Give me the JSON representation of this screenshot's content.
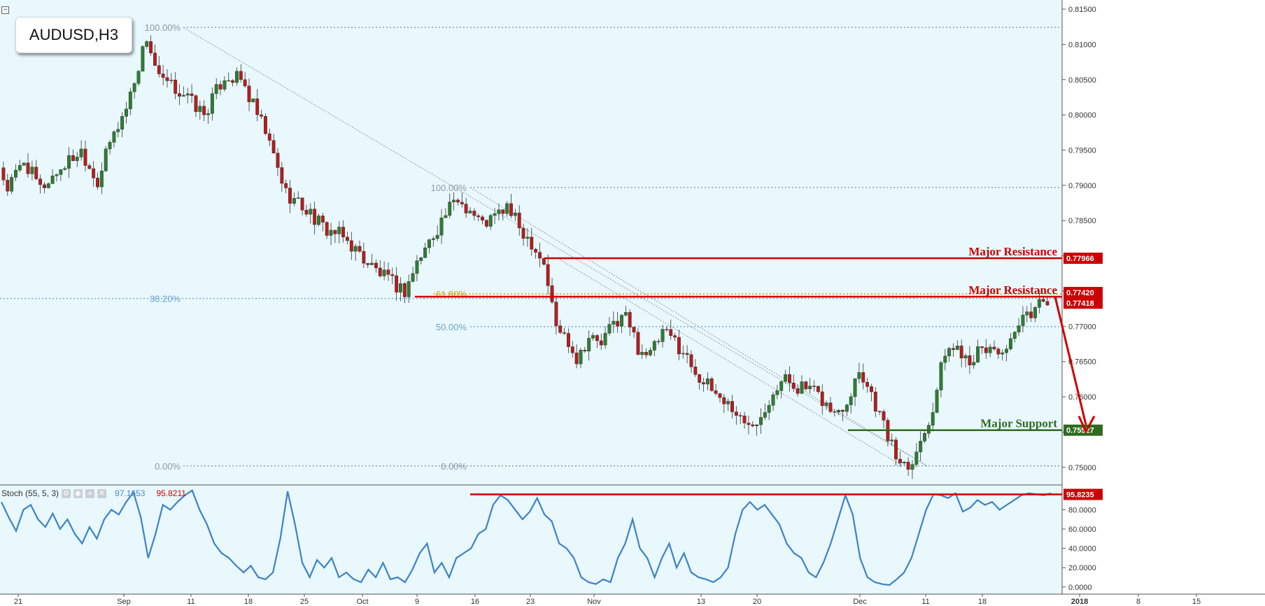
{
  "symbol": "AUDUSD,H3",
  "colors": {
    "bg": "#e9f8fd",
    "up": "#2e7d32",
    "down": "#b71c1c",
    "resistance": "#cc0000",
    "support": "#2e6b1f",
    "fib": "#8aa0b0",
    "fib_blue": "#5b9bd5",
    "stoch": "#3c82c8"
  },
  "indicator": {
    "name": "Stoch (55, 5, 3)",
    "value1": "97.1653",
    "value2": "95.8211"
  },
  "chart_data": [
    {
      "type": "candlestick",
      "title": "AUDUSD,H3",
      "ylim": [
        0.7476,
        0.8155
      ],
      "x_ticks": [
        "21",
        "Sep",
        "11",
        "18",
        "25",
        "Oct",
        "9",
        "16",
        "23",
        "Nov",
        "13",
        "20",
        "Dec",
        "11",
        "18",
        "2018",
        "8",
        "15"
      ],
      "y_ticks": [
        "0.81500",
        "0.81000",
        "0.80500",
        "0.80000",
        "0.79500",
        "0.79000",
        "0.78500",
        "0.78000",
        "0.77500",
        "0.77000",
        "0.76500",
        "0.76000",
        "0.75500",
        "0.75000"
      ],
      "series_path": [
        [
          0,
          0.7925
        ],
        [
          2,
          0.7895
        ],
        [
          6,
          0.7935
        ],
        [
          10,
          0.7895
        ],
        [
          16,
          0.793
        ],
        [
          20,
          0.795
        ],
        [
          24,
          0.7905
        ],
        [
          27,
          0.796
        ],
        [
          31,
          0.801
        ],
        [
          36,
          0.811
        ],
        [
          39,
          0.805
        ],
        [
          45,
          0.803
        ],
        [
          50,
          0.8
        ],
        [
          55,
          0.8055
        ],
        [
          59,
          0.805
        ],
        [
          65,
          0.7975
        ],
        [
          70,
          0.789
        ],
        [
          76,
          0.786
        ],
        [
          79,
          0.784
        ],
        [
          83,
          0.783
        ],
        [
          86,
          0.7815
        ],
        [
          90,
          0.779
        ],
        [
          95,
          0.7765
        ],
        [
          99,
          0.775
        ],
        [
          102,
          0.779
        ],
        [
          105,
          0.782
        ],
        [
          109,
          0.786
        ],
        [
          112,
          0.788
        ],
        [
          115,
          0.7865
        ],
        [
          118,
          0.7845
        ],
        [
          121,
          0.7855
        ],
        [
          124,
          0.787
        ],
        [
          127,
          0.784
        ],
        [
          130,
          0.782
        ],
        [
          133,
          0.779
        ],
        [
          136,
          0.77
        ],
        [
          139,
          0.768
        ],
        [
          141,
          0.7655
        ],
        [
          144,
          0.7685
        ],
        [
          147,
          0.7675
        ],
        [
          150,
          0.7705
        ],
        [
          153,
          0.7715
        ],
        [
          156,
          0.767
        ],
        [
          159,
          0.766
        ],
        [
          162,
          0.769
        ],
        [
          165,
          0.768
        ],
        [
          168,
          0.7655
        ],
        [
          172,
          0.762
        ],
        [
          176,
          0.76
        ],
        [
          179,
          0.7585
        ],
        [
          182,
          0.756
        ],
        [
          186,
          0.7575
        ],
        [
          189,
          0.761
        ],
        [
          192,
          0.7625
        ],
        [
          195,
          0.7615
        ],
        [
          198,
          0.761
        ],
        [
          201,
          0.7595
        ],
        [
          204,
          0.7575
        ],
        [
          207,
          0.7595
        ],
        [
          210,
          0.764
        ],
        [
          213,
          0.7605
        ],
        [
          216,
          0.756
        ],
        [
          219,
          0.7515
        ],
        [
          222,
          0.7505
        ],
        [
          225,
          0.7535
        ],
        [
          228,
          0.7585
        ],
        [
          231,
          0.7665
        ],
        [
          234,
          0.767
        ],
        [
          237,
          0.7655
        ],
        [
          240,
          0.7665
        ],
        [
          243,
          0.767
        ],
        [
          246,
          0.766
        ],
        [
          249,
          0.77
        ],
        [
          252,
          0.772
        ],
        [
          255,
          0.774
        ]
      ],
      "up_color": "#2e7d32",
      "down_color": "#b71c1c",
      "fib_levels": [
        {
          "label": "100.00%",
          "price": 0.8124
        },
        {
          "label": "38.20%",
          "price": 0.77395
        },
        {
          "label": "0.00%",
          "price": 0.7502
        },
        {
          "label": "100.00%",
          "price": 0.7897
        },
        {
          "label": "61.80%",
          "price": 0.7746
        },
        {
          "label": "50.00%",
          "price": 0.76995
        },
        {
          "label": "0.00%",
          "price": 0.7502
        }
      ],
      "horizontal_levels": [
        {
          "name": "Major Resistance",
          "value": "0.77966",
          "price": 0.77966,
          "color": "#cc0000"
        },
        {
          "name": "Major Resistance",
          "value": "0.77420",
          "price": 0.7742,
          "color": "#cc0000"
        },
        {
          "name": "",
          "value": "0.77418",
          "price": 0.77418,
          "color": "#cc0000"
        },
        {
          "name": "Major Support",
          "value": "0.75527",
          "price": 0.75527,
          "color": "#2e6b1f"
        }
      ],
      "projection": {
        "from_price": 0.7742,
        "to_price": 0.75527
      }
    },
    {
      "type": "line",
      "title": "Stoch (55, 5, 3)",
      "ylim": [
        -3,
        102
      ],
      "y_ticks": [
        "0.0000",
        "20.0000",
        "40.0000",
        "60.0000",
        "80.0000"
      ],
      "series": [
        {
          "name": "Stoch (55, 5, 3)",
          "values": [
            88,
            72,
            58,
            80,
            85,
            70,
            62,
            76,
            60,
            70,
            55,
            45,
            62,
            50,
            70,
            80,
            75,
            88,
            98,
            72,
            30,
            55,
            85,
            80,
            88,
            95,
            100,
            80,
            65,
            45,
            35,
            30,
            22,
            15,
            22,
            10,
            8,
            15,
            50,
            99,
            65,
            25,
            10,
            28,
            20,
            30,
            10,
            15,
            8,
            5,
            18,
            10,
            25,
            8,
            10,
            5,
            18,
            35,
            45,
            15,
            25,
            10,
            30,
            35,
            40,
            55,
            60,
            85,
            95,
            90,
            80,
            70,
            78,
            92,
            75,
            68,
            45,
            40,
            30,
            10,
            5,
            3,
            8,
            5,
            30,
            45,
            70,
            40,
            30,
            10,
            30,
            45,
            20,
            35,
            15,
            10,
            8,
            5,
            10,
            20,
            55,
            80,
            88,
            80,
            85,
            75,
            65,
            45,
            35,
            30,
            15,
            10,
            25,
            45,
            70,
            95,
            75,
            30,
            10,
            5,
            3,
            2,
            8,
            15,
            30,
            55,
            80,
            96,
            95,
            92,
            97,
            78,
            82,
            90,
            85,
            88,
            80,
            85,
            90,
            95,
            97,
            96,
            95,
            97
          ]
        }
      ],
      "reference_level": {
        "value": "95.8235",
        "level": 95.8235,
        "color": "#cc0000"
      }
    }
  ]
}
